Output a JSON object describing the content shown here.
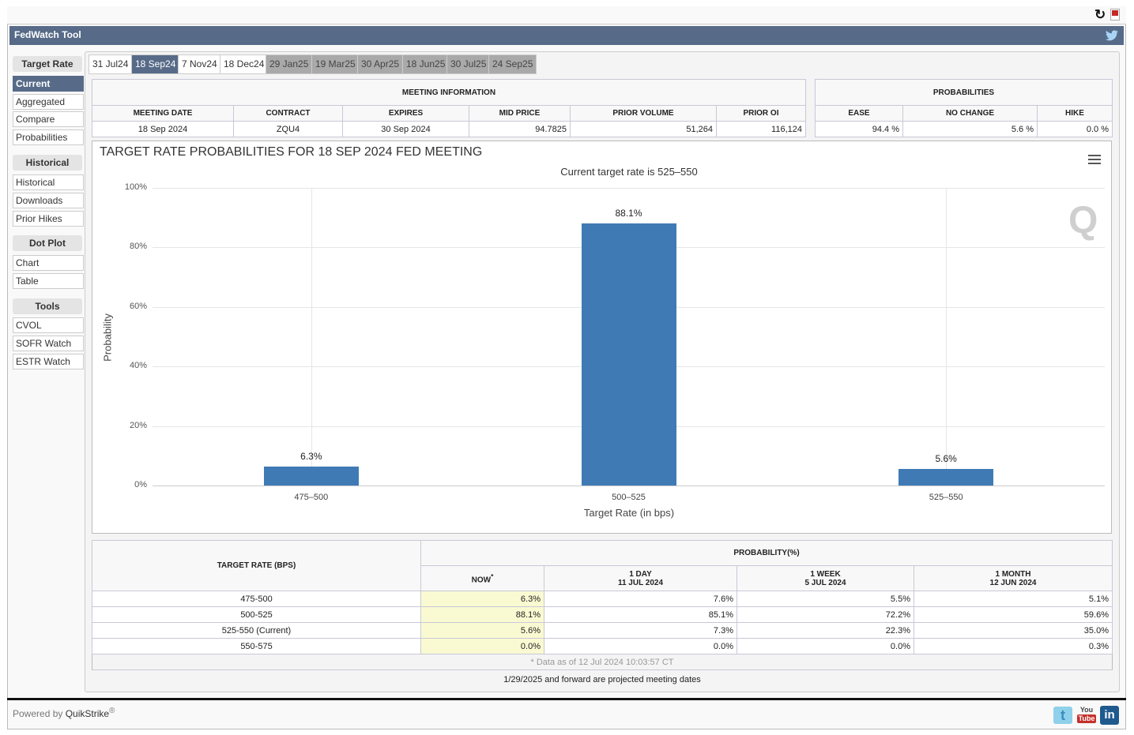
{
  "app": {
    "title": "FedWatch Tool"
  },
  "sidebar": {
    "sections": [
      {
        "label": "Target Rate",
        "items": [
          "Current",
          "Aggregated",
          "Compare",
          "Probabilities"
        ]
      },
      {
        "label": "Historical",
        "items": [
          "Historical",
          "Downloads",
          "Prior Hikes"
        ]
      },
      {
        "label": "Dot Plot",
        "items": [
          "Chart",
          "Table"
        ]
      },
      {
        "label": "Tools",
        "items": [
          "CVOL",
          "SOFR Watch",
          "ESTR Watch"
        ]
      }
    ]
  },
  "tabs": [
    {
      "label": "31 Jul24",
      "state": "normal"
    },
    {
      "label": "18 Sep24",
      "state": "selected"
    },
    {
      "label": "7 Nov24",
      "state": "normal"
    },
    {
      "label": "18 Dec24",
      "state": "normal"
    },
    {
      "label": "29 Jan25",
      "state": "projected"
    },
    {
      "label": "19 Mar25",
      "state": "projected"
    },
    {
      "label": "30 Apr25",
      "state": "projected"
    },
    {
      "label": "18 Jun25",
      "state": "projected"
    },
    {
      "label": "30 Jul25",
      "state": "projected"
    },
    {
      "label": "24 Sep25",
      "state": "projected"
    }
  ],
  "meeting": {
    "title": "MEETING INFORMATION",
    "headers": [
      "MEETING DATE",
      "CONTRACT",
      "EXPIRES",
      "MID PRICE",
      "PRIOR VOLUME",
      "PRIOR OI"
    ],
    "values": [
      "18 Sep 2024",
      "ZQU4",
      "30 Sep 2024",
      "94.7825",
      "51,264",
      "116,124"
    ]
  },
  "probabilities": {
    "title": "PROBABILITIES",
    "headers": [
      "EASE",
      "NO CHANGE",
      "HIKE"
    ],
    "values": [
      "94.4 %",
      "5.6 %",
      "0.0 %"
    ]
  },
  "chart_data": {
    "type": "bar",
    "title": "TARGET RATE PROBABILITIES FOR 18 SEP 2024 FED MEETING",
    "subtitle": "Current target rate is 525–550",
    "categories": [
      "475–500",
      "500–525",
      "525–550"
    ],
    "values": [
      6.3,
      88.1,
      5.6
    ],
    "data_labels": [
      "6.3%",
      "88.1%",
      "5.6%"
    ],
    "xlabel": "Target Rate (in bps)",
    "ylabel": "Probability",
    "ylim": [
      0,
      100
    ],
    "yticks": [
      "0%",
      "20%",
      "40%",
      "60%",
      "80%",
      "100%"
    ],
    "color": "#3f7ab5"
  },
  "bottom": {
    "col_rate": "TARGET RATE (BPS)",
    "col_prob": "PROBABILITY(%)",
    "now": "NOW",
    "now_mark": "*",
    "periods": [
      {
        "l1": "1 DAY",
        "l2": "11 JUL 2024"
      },
      {
        "l1": "1 WEEK",
        "l2": "5 JUL 2024"
      },
      {
        "l1": "1 MONTH",
        "l2": "12 JUN 2024"
      }
    ],
    "rows": [
      [
        "475-500",
        "6.3%",
        "7.6%",
        "5.5%",
        "5.1%"
      ],
      [
        "500-525",
        "88.1%",
        "85.1%",
        "72.2%",
        "59.6%"
      ],
      [
        "525-550 (Current)",
        "5.6%",
        "7.3%",
        "22.3%",
        "35.0%"
      ],
      [
        "550-575",
        "0.0%",
        "0.0%",
        "0.0%",
        "0.3%"
      ]
    ],
    "data_note": "* Data as of 12 Jul 2024 10:03:57 CT"
  },
  "projected_note": "1/29/2025 and forward are projected meeting dates",
  "footer": {
    "powered": "Powered by ",
    "brand": "QuikStrike",
    "reg": "®",
    "youtube_you": "You",
    "youtube_tube": "Tube",
    "linkedin": "in"
  }
}
